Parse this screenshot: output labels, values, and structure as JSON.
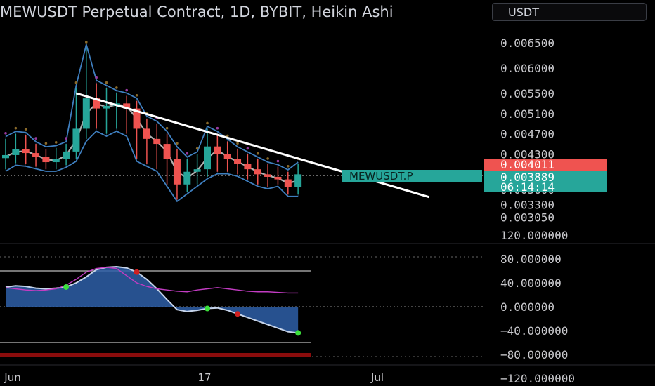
{
  "header": {
    "title": "MEWUSDT Perpetual Contract, 1D, BYBIT, Heikin Ashi",
    "currency": "USDT"
  },
  "colors": {
    "bull": "#26a69a",
    "bear": "#ef5350",
    "band": "#3f7fbf",
    "osc_fill": "#2e5fa8",
    "signal": "#c33cc3",
    "trendline": "#ffffff"
  },
  "chart_data": [
    {
      "type": "candlestick",
      "series_name": "MEWUSDT.P",
      "price_axis_ticks": [
        "0.006500",
        "0.006000",
        "0.005500",
        "0.005100",
        "0.004700",
        "0.004300",
        "0.004011",
        "0.003889",
        "0.003600",
        "0.003300",
        "0.003050"
      ],
      "x_axis_ticks": [
        "Jun",
        "17",
        "Jul"
      ],
      "candles": [
        {
          "o": 0.00422,
          "c": 0.00428,
          "h": 0.0046,
          "l": 0.004
        },
        {
          "o": 0.00428,
          "c": 0.0044,
          "h": 0.0047,
          "l": 0.00412
        },
        {
          "o": 0.0044,
          "c": 0.00432,
          "h": 0.00468,
          "l": 0.0041
        },
        {
          "o": 0.00432,
          "c": 0.00425,
          "h": 0.0045,
          "l": 0.00405
        },
        {
          "o": 0.00425,
          "c": 0.00414,
          "h": 0.0044,
          "l": 0.004
        },
        {
          "o": 0.00414,
          "c": 0.0042,
          "h": 0.00442,
          "l": 0.004
        },
        {
          "o": 0.0042,
          "c": 0.00435,
          "h": 0.0045,
          "l": 0.00408
        },
        {
          "o": 0.00435,
          "c": 0.0048,
          "h": 0.0056,
          "l": 0.0042
        },
        {
          "o": 0.0048,
          "c": 0.0054,
          "h": 0.0064,
          "l": 0.0046
        },
        {
          "o": 0.0054,
          "c": 0.0052,
          "h": 0.0057,
          "l": 0.0048
        },
        {
          "o": 0.0052,
          "c": 0.00525,
          "h": 0.0056,
          "l": 0.0047
        },
        {
          "o": 0.00525,
          "c": 0.0053,
          "h": 0.0055,
          "l": 0.0048
        },
        {
          "o": 0.0053,
          "c": 0.0052,
          "h": 0.00545,
          "l": 0.0047
        },
        {
          "o": 0.0052,
          "c": 0.0048,
          "h": 0.00535,
          "l": 0.0042
        },
        {
          "o": 0.0048,
          "c": 0.0046,
          "h": 0.005,
          "l": 0.0041
        },
        {
          "o": 0.0046,
          "c": 0.0045,
          "h": 0.0049,
          "l": 0.004
        },
        {
          "o": 0.0045,
          "c": 0.0042,
          "h": 0.0047,
          "l": 0.0037
        },
        {
          "o": 0.0042,
          "c": 0.0037,
          "h": 0.0044,
          "l": 0.0034
        },
        {
          "o": 0.0037,
          "c": 0.00395,
          "h": 0.0042,
          "l": 0.00355
        },
        {
          "o": 0.00395,
          "c": 0.004,
          "h": 0.0043,
          "l": 0.0037
        },
        {
          "o": 0.004,
          "c": 0.00445,
          "h": 0.0048,
          "l": 0.00385
        },
        {
          "o": 0.00445,
          "c": 0.0043,
          "h": 0.0047,
          "l": 0.00395
        },
        {
          "o": 0.0043,
          "c": 0.0042,
          "h": 0.00455,
          "l": 0.00395
        },
        {
          "o": 0.0042,
          "c": 0.0041,
          "h": 0.0044,
          "l": 0.0039
        },
        {
          "o": 0.0041,
          "c": 0.004,
          "h": 0.0043,
          "l": 0.0038
        },
        {
          "o": 0.004,
          "c": 0.0039,
          "h": 0.0042,
          "l": 0.0037
        },
        {
          "o": 0.0039,
          "c": 0.00385,
          "h": 0.0041,
          "l": 0.00365
        },
        {
          "o": 0.00385,
          "c": 0.0038,
          "h": 0.00405,
          "l": 0.0037
        },
        {
          "o": 0.0038,
          "c": 0.00365,
          "h": 0.00395,
          "l": 0.0035
        },
        {
          "o": 0.00365,
          "c": 0.0039,
          "h": 0.0041,
          "l": 0.0035
        }
      ],
      "trendline": [
        {
          "i": 7,
          "v": 0.0055
        },
        {
          "i": 42,
          "v": 0.00345
        }
      ],
      "price_labels": [
        {
          "value": 0.004011,
          "text": "0.004011",
          "color": "#ef5350"
        },
        {
          "value": 0.003889,
          "text": "0.003889",
          "countdown": "06:14:14",
          "color": "#26a69a"
        }
      ]
    },
    {
      "type": "area",
      "series_name": "oscillator",
      "axis_ticks": [
        "120.000000",
        "80.000000",
        "40.000000",
        "0.000000",
        "−40.000000",
        "−80.000000",
        "−120.000000"
      ],
      "reference_levels": [
        60,
        0,
        -60
      ],
      "main": [
        33,
        35,
        34,
        31,
        30,
        31,
        33,
        40,
        50,
        62,
        66,
        67,
        65,
        58,
        46,
        30,
        12,
        -5,
        -8,
        -6,
        -3,
        -2,
        -6,
        -12,
        -18,
        -24,
        -30,
        -36,
        -42,
        -44
      ],
      "signal": [
        32,
        30,
        28,
        27,
        28,
        30,
        36,
        46,
        58,
        64,
        66,
        64,
        52,
        40,
        34,
        30,
        28,
        26,
        25,
        28,
        30,
        32,
        30,
        28,
        26,
        25,
        25,
        24,
        23,
        23
      ]
    }
  ]
}
